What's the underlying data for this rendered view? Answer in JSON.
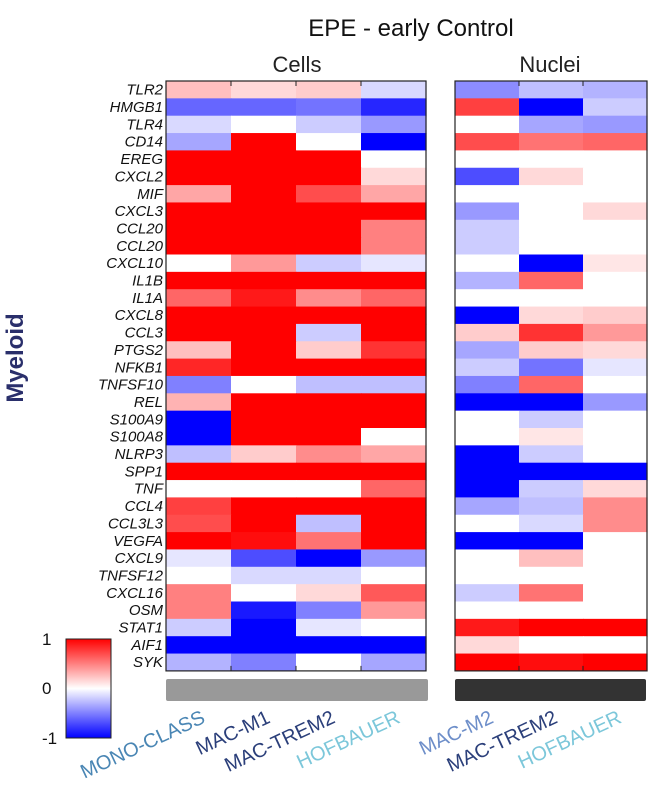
{
  "chart_data": {
    "type": "heatmap",
    "title": "EPE - early Control",
    "ylabel": "Myeloid",
    "color_scale": {
      "min": -1,
      "mid": 0,
      "max": 1,
      "low_color": "#0000ff",
      "mid_color": "#ffffff",
      "high_color": "#ff0000"
    },
    "colorbar_ticks": [
      "1",
      "0",
      "-1"
    ],
    "genes": [
      "TLR2",
      "HMGB1",
      "TLR4",
      "CD14",
      "EREG",
      "CXCL2",
      "MIF",
      "CXCL3",
      "CCL20",
      "CCL20",
      "CXCL10",
      "IL1B",
      "IL1A",
      "CXCL8",
      "CCL3",
      "PTGS2",
      "NFKB1",
      "TNFSF10",
      "REL",
      "S100A9",
      "S100A8",
      "NLRP3",
      "SPP1",
      "TNF",
      "CCL4",
      "CCL3L3",
      "VEGFA",
      "CXCL9",
      "TNFSF12",
      "CXCL16",
      "OSM",
      "STAT1",
      "AIF1",
      "SYK"
    ],
    "panels": [
      {
        "name": "Cells",
        "bar_color": "#999999",
        "columns": [
          "MONO-CLASS",
          "MAC-M1",
          "MAC-TREM2",
          "HOFBAUER"
        ],
        "column_colors": [
          "#4a86b4",
          "#2b3f7a",
          "#2b3f7a",
          "#7cc7da"
        ],
        "values": [
          [
            0.25,
            0.15,
            0.2,
            -0.15
          ],
          [
            -0.6,
            -0.6,
            -0.55,
            -0.85
          ],
          [
            -0.15,
            0,
            -0.2,
            -0.4
          ],
          [
            -0.35,
            1,
            0,
            -1
          ],
          [
            1,
            1,
            1,
            0
          ],
          [
            1,
            1,
            1,
            0.15
          ],
          [
            0.35,
            1,
            0.7,
            0.35
          ],
          [
            1,
            1,
            1,
            1
          ],
          [
            1,
            1,
            1,
            0.5
          ],
          [
            1,
            1,
            1,
            0.5
          ],
          [
            0,
            0.4,
            -0.2,
            -0.1
          ],
          [
            1,
            1,
            1,
            1
          ],
          [
            0.6,
            0.9,
            0.45,
            0.6
          ],
          [
            1,
            1,
            1,
            1
          ],
          [
            1,
            1,
            -0.2,
            1
          ],
          [
            0.25,
            1,
            0.2,
            0.8
          ],
          [
            0.85,
            1,
            1,
            1
          ],
          [
            -0.5,
            0,
            -0.25,
            -0.25
          ],
          [
            0.3,
            1,
            1,
            1
          ],
          [
            -1,
            1,
            1,
            1
          ],
          [
            -1,
            1,
            1,
            0
          ],
          [
            -0.25,
            0.2,
            0.45,
            0.35
          ],
          [
            1,
            1,
            1,
            1
          ],
          [
            0,
            0,
            0,
            0.6
          ],
          [
            0.75,
            1,
            1,
            1
          ],
          [
            0.7,
            1,
            -0.25,
            1
          ],
          [
            1,
            0.95,
            0.55,
            1
          ],
          [
            -0.1,
            -0.7,
            -1,
            -0.4
          ],
          [
            0,
            -0.15,
            -0.15,
            0
          ],
          [
            0.5,
            0,
            0.15,
            0.65
          ],
          [
            0.5,
            -0.9,
            -0.5,
            0.4
          ],
          [
            -0.2,
            -1,
            -0.1,
            0
          ],
          [
            -1,
            -1,
            -1,
            -1
          ],
          [
            -0.3,
            -0.5,
            0,
            -0.35
          ]
        ]
      },
      {
        "name": "Nuclei",
        "bar_color": "#333333",
        "columns": [
          "MAC-M2",
          "MAC-TREM2",
          "HOFBAUER"
        ],
        "column_colors": [
          "#6d8ec9",
          "#2b3f7a",
          "#7cc7da"
        ],
        "values": [
          [
            -0.45,
            -0.25,
            -0.3
          ],
          [
            0.75,
            -1,
            -0.2
          ],
          [
            0,
            -0.35,
            -0.4
          ],
          [
            0.7,
            0.55,
            0.6
          ],
          [
            0,
            0,
            0
          ],
          [
            -0.7,
            0.15,
            0
          ],
          [
            0,
            0,
            0
          ],
          [
            -0.4,
            0,
            0.15
          ],
          [
            -0.2,
            0,
            0
          ],
          [
            -0.2,
            0,
            0
          ],
          [
            0,
            -1,
            0.1
          ],
          [
            -0.3,
            0.6,
            0
          ],
          [
            0,
            0,
            0
          ],
          [
            -1,
            0.15,
            0.2
          ],
          [
            0.2,
            0.8,
            0.4
          ],
          [
            -0.35,
            0.2,
            0.15
          ],
          [
            -0.2,
            -0.55,
            -0.1
          ],
          [
            -0.5,
            0.6,
            0
          ],
          [
            -1,
            -1,
            -0.4
          ],
          [
            0,
            -0.2,
            0
          ],
          [
            0,
            0.1,
            0
          ],
          [
            -1,
            -0.2,
            0
          ],
          [
            -1,
            -1,
            -1
          ],
          [
            -1,
            -0.2,
            0.15
          ],
          [
            -0.35,
            -0.25,
            0.45
          ],
          [
            0,
            -0.15,
            0.45
          ],
          [
            -1,
            -1,
            0
          ],
          [
            0,
            0.25,
            0
          ],
          [
            0,
            0,
            0
          ],
          [
            -0.2,
            0.55,
            0
          ],
          [
            0,
            0,
            0
          ],
          [
            0.9,
            1,
            1
          ],
          [
            0.15,
            0,
            0
          ],
          [
            1,
            0.95,
            1
          ]
        ]
      }
    ]
  }
}
